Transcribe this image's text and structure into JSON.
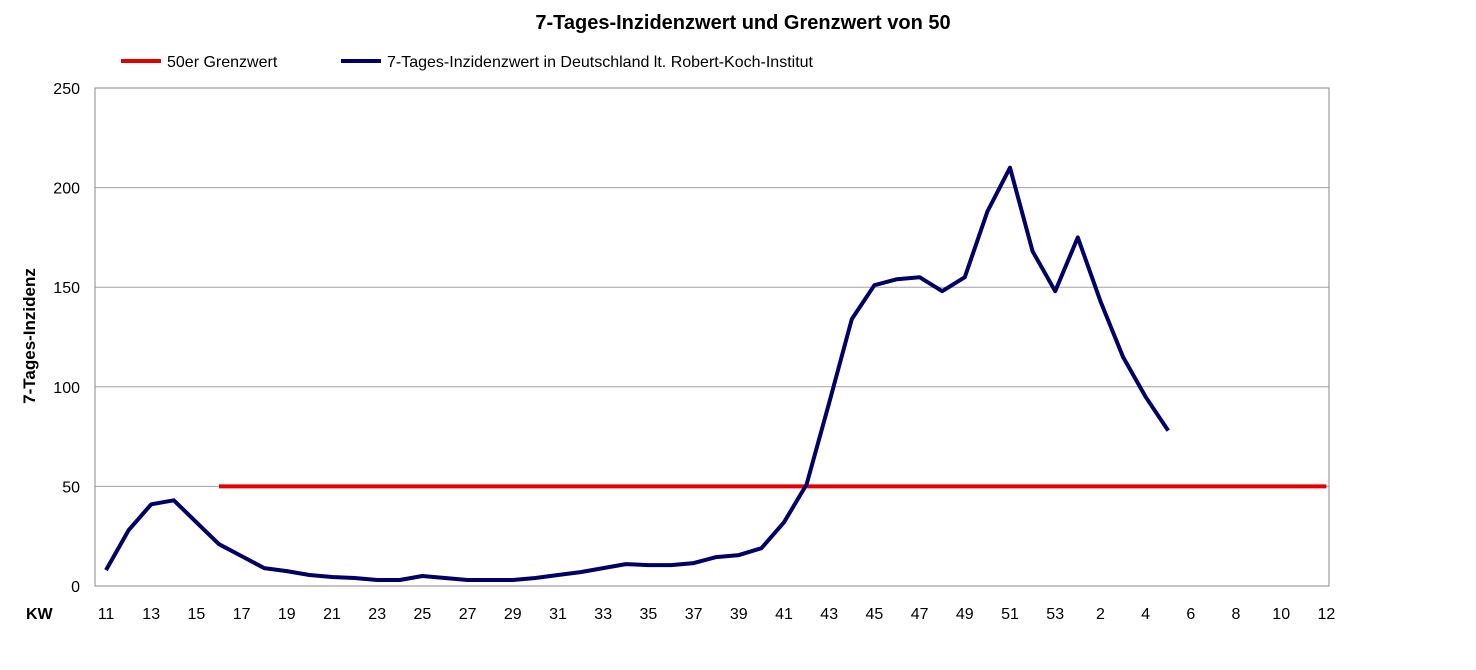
{
  "chart_data": {
    "type": "line",
    "title": "7-Tages-Inzidenzwert und Grenzwert von 50",
    "ylabel": "7-Tages-Inzidenz",
    "xlabel": "KW",
    "ylim": [
      0,
      250
    ],
    "yticks": [
      "0",
      "50",
      "100",
      "150",
      "200",
      "250"
    ],
    "xticks": [
      "11",
      "13",
      "15",
      "17",
      "19",
      "21",
      "23",
      "25",
      "27",
      "29",
      "31",
      "33",
      "35",
      "37",
      "39",
      "41",
      "43",
      "45",
      "47",
      "49",
      "51",
      "53",
      "2",
      "4",
      "6",
      "8",
      "10",
      "12"
    ],
    "x": [
      "11",
      "12",
      "13",
      "14",
      "15",
      "16",
      "17",
      "18",
      "19",
      "20",
      "21",
      "22",
      "23",
      "24",
      "25",
      "26",
      "27",
      "28",
      "29",
      "30",
      "31",
      "32",
      "33",
      "34",
      "35",
      "36",
      "37",
      "38",
      "39",
      "40",
      "41",
      "42",
      "43",
      "44",
      "45",
      "46",
      "47",
      "48",
      "49",
      "50",
      "51",
      "52",
      "53",
      "1",
      "2",
      "3",
      "4",
      "5",
      "6",
      "7",
      "8",
      "9",
      "10",
      "11",
      "12"
    ],
    "grid": "horizontal",
    "legend": "top-left",
    "series": [
      {
        "name": "50er Grenzwert",
        "color": "#e60000",
        "values": [
          null,
          null,
          null,
          null,
          null,
          50,
          50,
          50,
          50,
          50,
          50,
          50,
          50,
          50,
          50,
          50,
          50,
          50,
          50,
          50,
          50,
          50,
          50,
          50,
          50,
          50,
          50,
          50,
          50,
          50,
          50,
          50,
          50,
          50,
          50,
          50,
          50,
          50,
          50,
          50,
          50,
          50,
          50,
          50,
          50,
          50,
          50,
          50,
          50,
          50,
          50,
          50,
          50,
          50,
          50
        ]
      },
      {
        "name": "7-Tages-Inzidenzwert in Deutschland lt. Robert-Koch-Institut",
        "color": "#000066",
        "values": [
          8,
          28,
          41,
          43,
          32,
          21,
          15,
          9,
          7.5,
          5.5,
          4.5,
          4,
          3,
          3,
          5,
          4,
          3,
          3,
          3,
          4,
          5.5,
          7,
          9,
          11,
          10.5,
          10.5,
          11.5,
          14.5,
          15.5,
          19,
          32,
          51,
          92,
          134,
          151,
          154,
          155,
          148,
          155,
          188,
          210,
          168,
          148,
          175,
          143,
          115,
          95,
          78,
          null,
          null,
          null,
          null,
          null,
          null,
          null
        ]
      }
    ]
  }
}
